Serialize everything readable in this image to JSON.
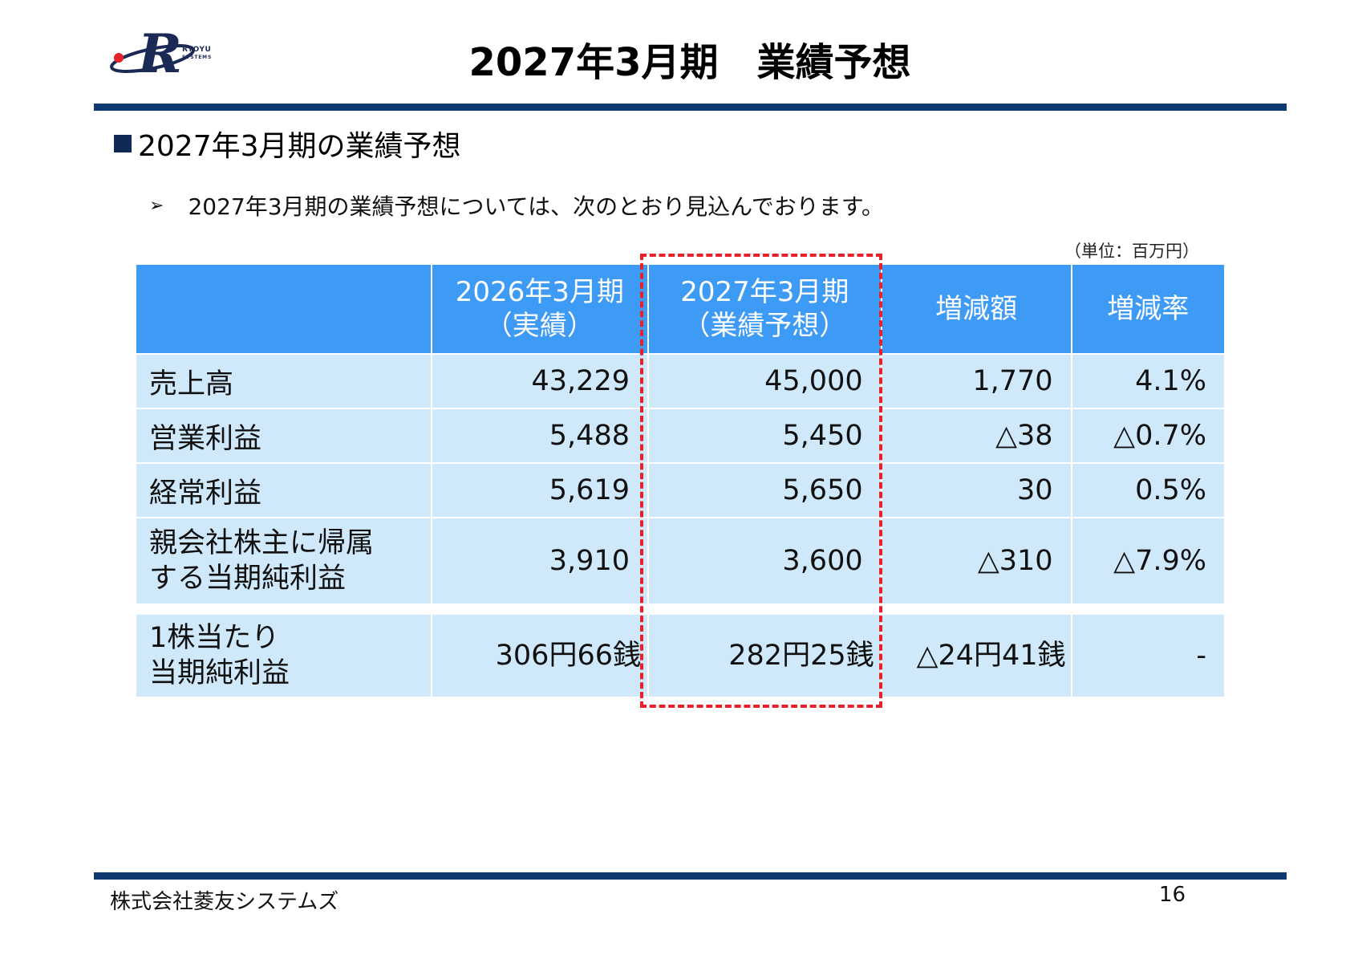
{
  "header": {
    "title": "2027年3月期　業績予想",
    "logo_letter": "R",
    "logo_line1": "RYOYU",
    "logo_line2": "SYSTEMS"
  },
  "section": {
    "heading": "2027年3月期の業績予想",
    "bullet": "2027年3月期の業績予想については、次のとおり見込んでおります。",
    "bullet_marker": "➢",
    "unit_note": "（単位：百万円）"
  },
  "table": {
    "headers": [
      {
        "line1": "",
        "line2": ""
      },
      {
        "line1": "2026年3月期",
        "line2": "（実績）"
      },
      {
        "line1": "2027年3月期",
        "line2": "（業績予想）"
      },
      {
        "line1": "増減額",
        "line2": ""
      },
      {
        "line1": "増減率",
        "line2": ""
      }
    ],
    "rows": [
      {
        "label1": "売上高",
        "label2": "",
        "actual": "43,229",
        "forecast": "45,000",
        "change": "1,770",
        "rate": "4.1%"
      },
      {
        "label1": "営業利益",
        "label2": "",
        "actual": "5,488",
        "forecast": "5,450",
        "change": "△38",
        "rate": "△0.7%"
      },
      {
        "label1": "経常利益",
        "label2": "",
        "actual": "5,619",
        "forecast": "5,650",
        "change": "30",
        "rate": "0.5%"
      },
      {
        "label1": "親会社株主に帰属",
        "label2": "する当期純利益",
        "actual": "3,910",
        "forecast": "3,600",
        "change": "△310",
        "rate": "△7.9%"
      }
    ],
    "eps": {
      "label1": "1株当たり",
      "label2": "当期純利益",
      "actual": "306円66銭",
      "forecast": "282円25銭",
      "change": "△24円41銭",
      "rate": "-"
    }
  },
  "footer": {
    "company": "株式会社菱友システムズ",
    "page": "16"
  },
  "colors": {
    "header_bar": "#0f3a70",
    "table_header": "#3d9af5",
    "table_cell": "#cfe9fb",
    "highlight_border": "#e8202a"
  }
}
